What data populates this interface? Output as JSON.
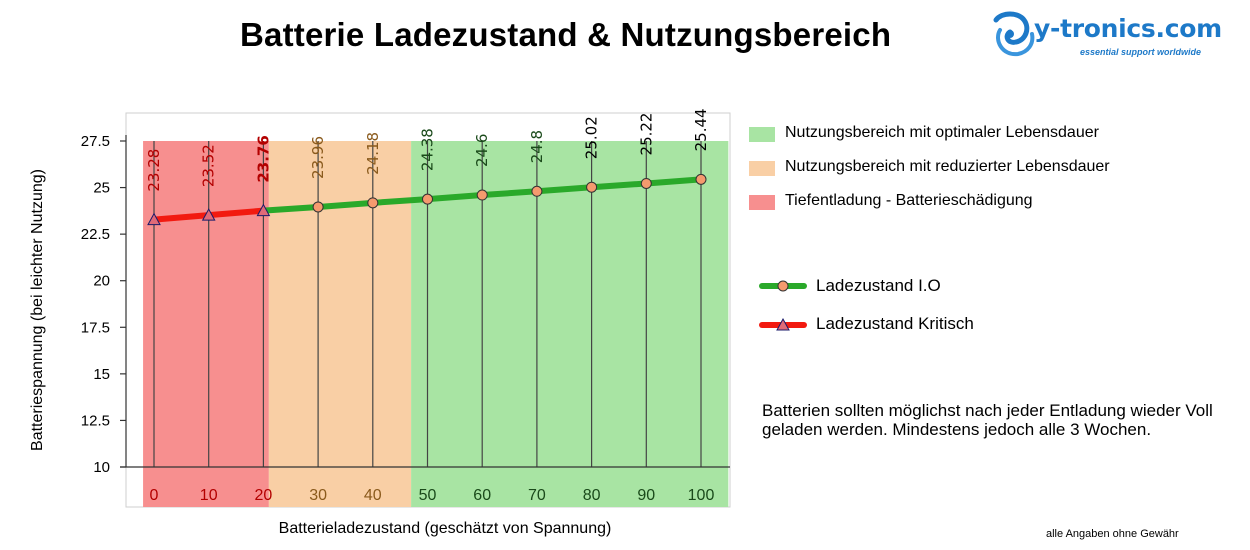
{
  "title": "Batterie Ladezustand & Nutzungsbereich",
  "logo": {
    "text": "y-tronics.com",
    "tagline": "essential support worldwide"
  },
  "colors": {
    "optimal_zone": "#a8e4a3",
    "reduced_zone": "#f9cfa5",
    "critical_zone": "#f78f8f",
    "line_ok": "#2aa92a",
    "line_critical": "#f21a10",
    "marker_ok": "#f59a6e",
    "marker_critical": "#e06a78",
    "label_critical": "#b30000",
    "label_reduced": "#8a5a1c",
    "label_optimal": "#1a4a1a",
    "label_top": "#000000"
  },
  "legend": {
    "zones": [
      {
        "label": "Nutzungsbereich mit optimaler Lebensdauer",
        "color": "#a8e4a3"
      },
      {
        "label": "Nutzungsbereich mit reduzierter Lebensdauer",
        "color": "#f9cfa5"
      },
      {
        "label": "Tiefentladung - Batterieschädigung",
        "color": "#f78f8f"
      }
    ],
    "series": [
      {
        "label": "Ladezustand I.O",
        "icon": "circle-marker-icon"
      },
      {
        "label": "Ladezustand Kritisch",
        "icon": "triangle-marker-icon"
      }
    ]
  },
  "note": "Batterien sollten möglichst nach jeder Entladung wieder Voll geladen werden. Mindestens jedoch alle 3 Wochen.",
  "disclaimer": "alle Angaben ohne Gewähr",
  "chart_data": {
    "type": "line",
    "title": "Batterie Ladezustand & Nutzungsbereich",
    "xlabel": "Batterieladezustand (geschätzt von Spannung)",
    "ylabel": "Batteriespannung (bei leichter Nutzung)",
    "x": [
      0,
      10,
      20,
      30,
      40,
      50,
      60,
      70,
      80,
      90,
      100
    ],
    "x_tick_labels": [
      "0",
      "10",
      "20",
      "30",
      "40",
      "50",
      "60",
      "70",
      "80",
      "90",
      "100"
    ],
    "y_tick_labels": [
      "10",
      "12.5",
      "15",
      "17.5",
      "20",
      "22.5",
      "25",
      "27.5"
    ],
    "ylim": [
      10,
      27.5
    ],
    "values": [
      23.28,
      23.52,
      23.76,
      23.96,
      24.18,
      24.38,
      24.6,
      24.8,
      25.02,
      25.22,
      25.44
    ],
    "data_labels": [
      "23.28",
      "23.52",
      "23.76",
      "23.96",
      "24.18",
      "24.38",
      "24.6",
      "24.8",
      "25.02",
      "25.22",
      "25.44"
    ],
    "series": [
      {
        "name": "Ladezustand Kritisch",
        "x": [
          0,
          10,
          20
        ],
        "values": [
          23.28,
          23.52,
          23.76
        ],
        "marker": "triangle"
      },
      {
        "name": "Ladezustand I.O",
        "x": [
          20,
          30,
          40,
          50,
          60,
          70,
          80,
          90,
          100
        ],
        "values": [
          23.76,
          23.96,
          24.18,
          24.38,
          24.6,
          24.8,
          25.02,
          25.22,
          25.44
        ],
        "marker": "circle"
      }
    ],
    "zones": [
      {
        "name": "Tiefentladung - Batterieschädigung",
        "from": -2,
        "to": 21
      },
      {
        "name": "Nutzungsbereich mit reduzierter Lebensdauer",
        "from": 21,
        "to": 47
      },
      {
        "name": "Nutzungsbereich mit optimaler Lebensdauer",
        "from": 47,
        "to": 105
      }
    ],
    "grid": "vertical lines at x ticks",
    "legend_position": "right"
  }
}
